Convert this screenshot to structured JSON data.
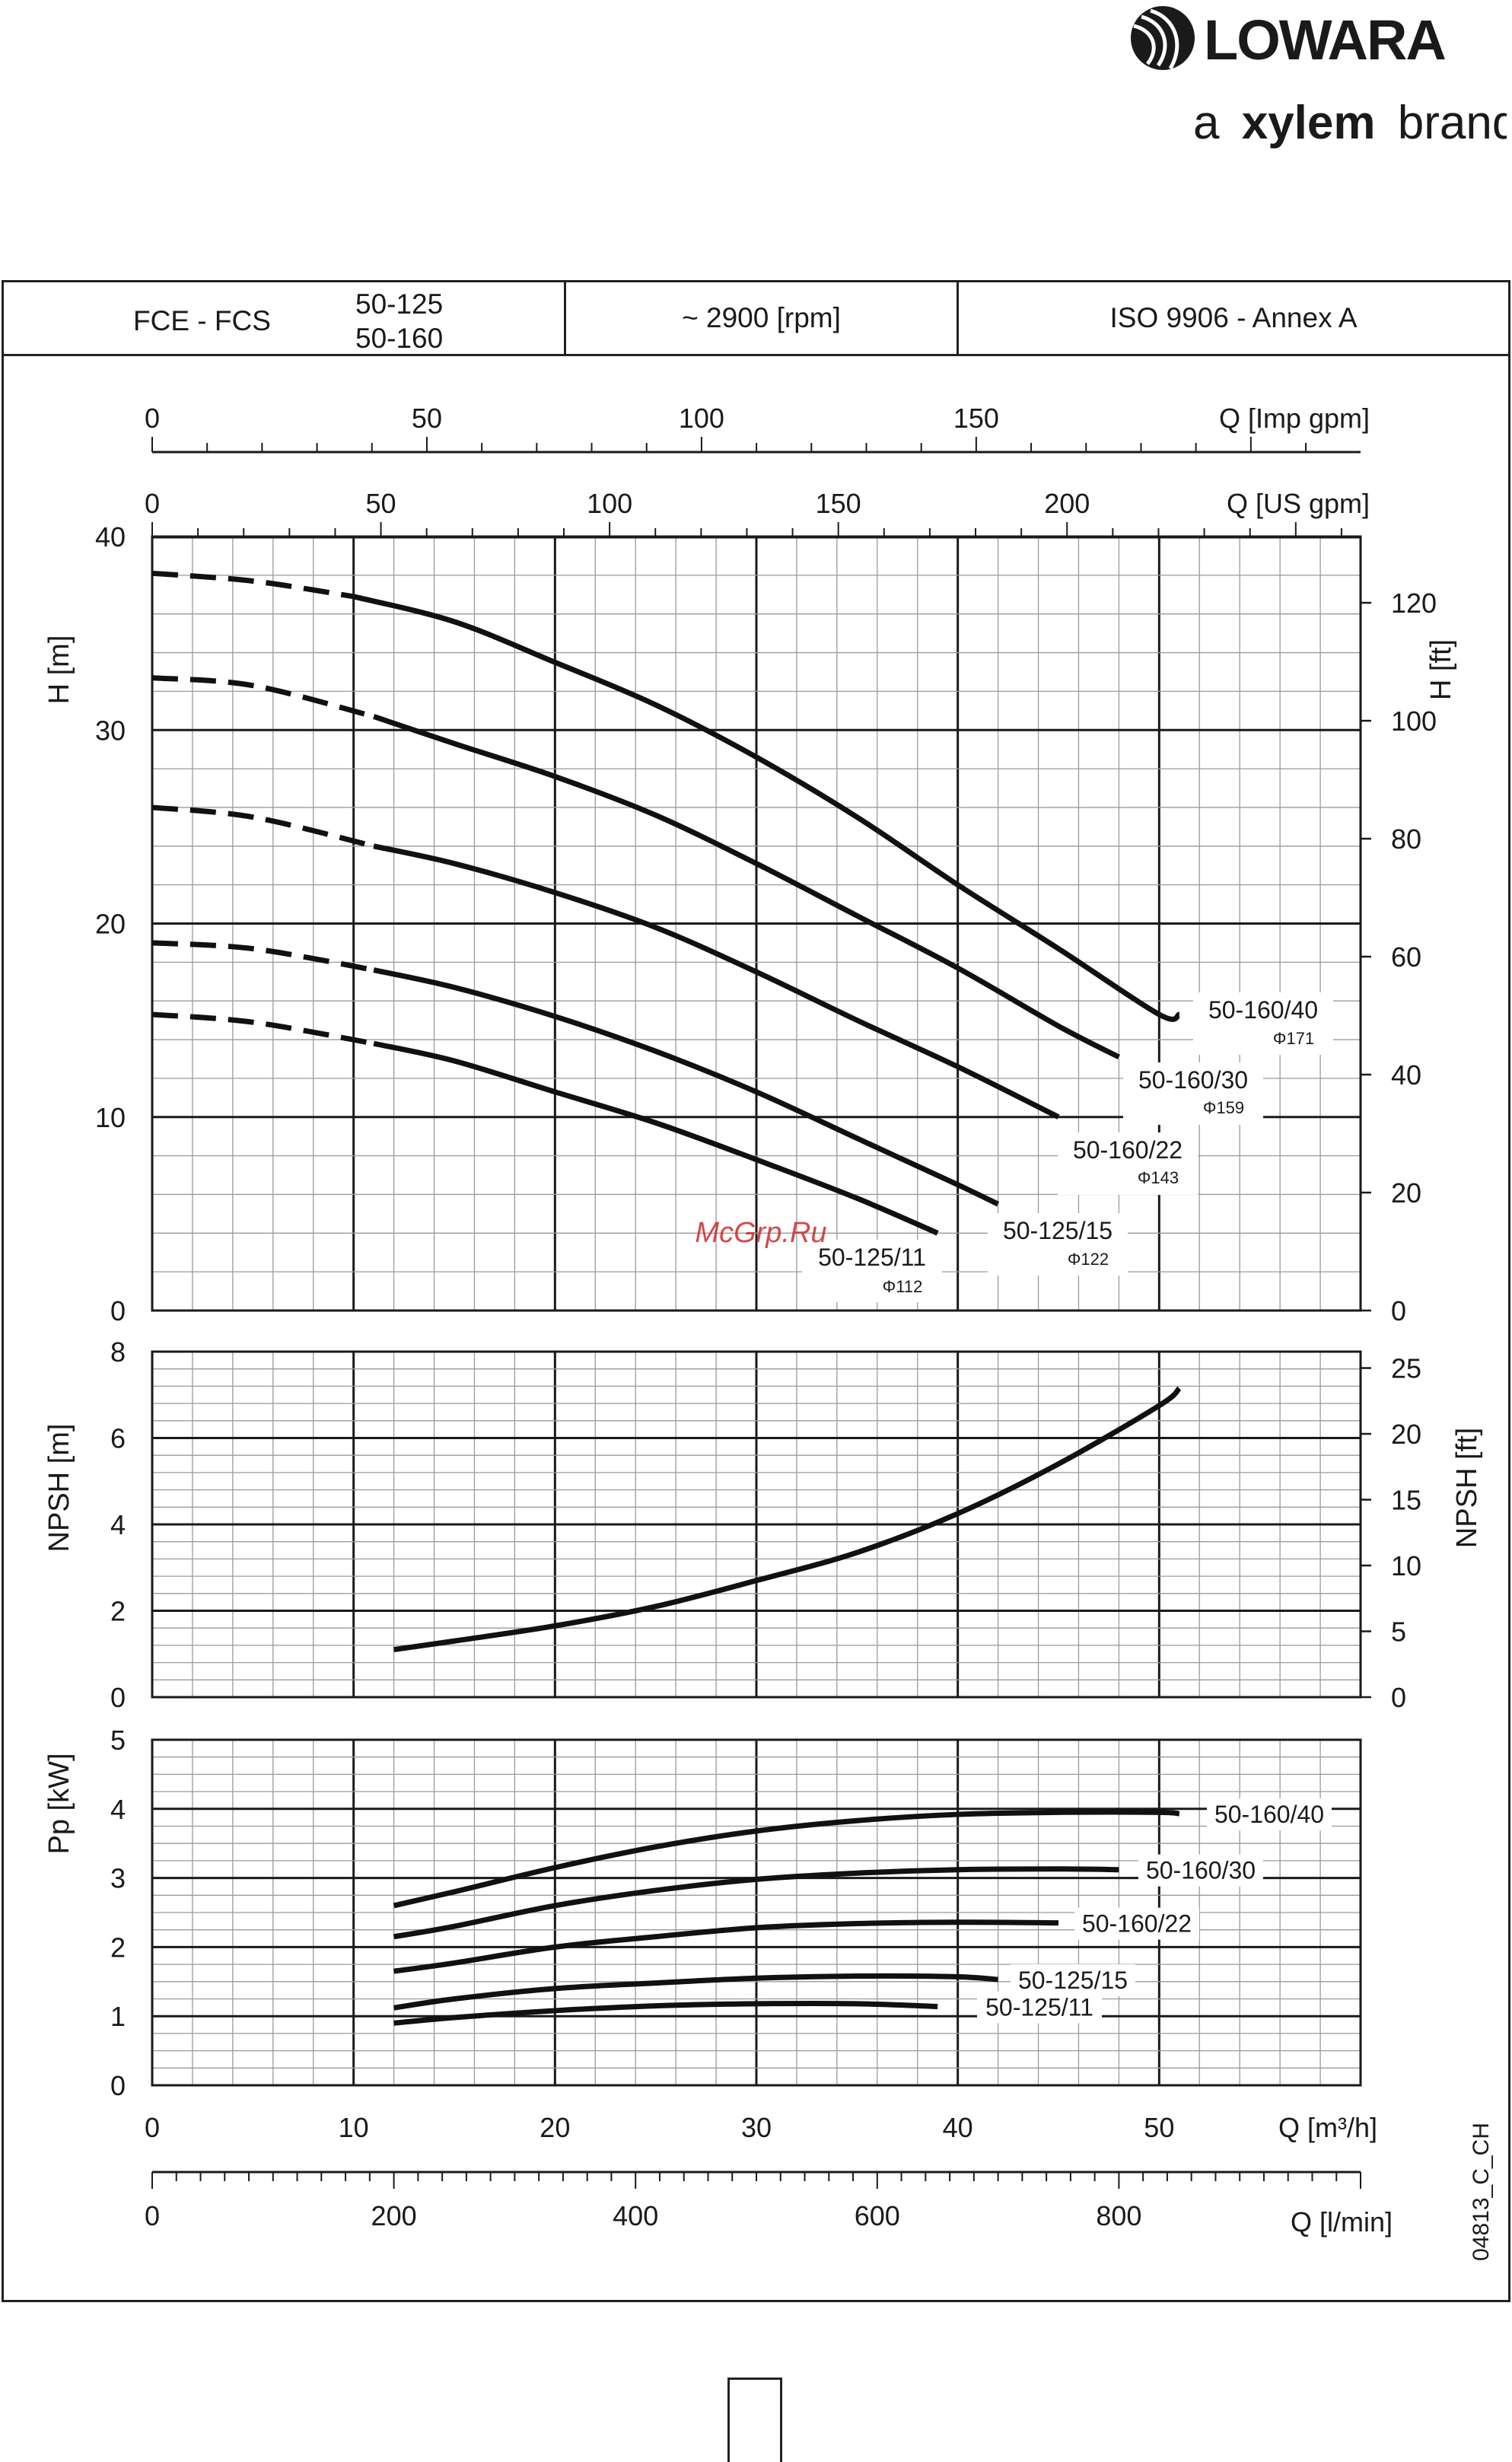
{
  "brand": {
    "name": "LOWARA",
    "tagline_prefix": "a",
    "tagline_brand": "xylem",
    "tagline_suffix": "brand"
  },
  "header": {
    "series": "FCE - FCS",
    "sizes": [
      "50-125",
      "50-160"
    ],
    "speed": "~ 2900 [rpm]",
    "standard": "ISO 9906 - Annex A"
  },
  "doc_code": "04813_C_CH",
  "watermark": "McGrp.Ru",
  "chart_data": {
    "type": "line",
    "x_axes": {
      "primary": {
        "label": "Q [m³/h]",
        "range": [
          0,
          60
        ],
        "ticks": [
          "0",
          "10",
          "20",
          "30",
          "40",
          "50"
        ],
        "tick_values": [
          0,
          10,
          20,
          30,
          40,
          50
        ]
      },
      "lpm": {
        "label": "Q [l/min]",
        "range": [
          0,
          1000
        ],
        "ticks": [
          "0",
          "200",
          "400",
          "600",
          "800"
        ],
        "tick_values": [
          0,
          200,
          400,
          600,
          800
        ]
      },
      "us_gpm": {
        "label": "Q [US gpm]",
        "range": [
          0,
          264.17
        ],
        "ticks": [
          "0",
          "50",
          "100",
          "150",
          "200"
        ],
        "tick_values": [
          0,
          50,
          100,
          150,
          200
        ]
      },
      "imp_gpm": {
        "label": "Q [Imp gpm]",
        "range": [
          0,
          220
        ],
        "ticks": [
          "0",
          "50",
          "100",
          "150"
        ],
        "tick_values": [
          0,
          50,
          100,
          150
        ]
      }
    },
    "head": {
      "ylabel": "H [m]",
      "ylim": [
        0,
        40
      ],
      "yticks": [
        "0",
        "10",
        "20",
        "30",
        "40"
      ],
      "ylabel_right": "H [ft]",
      "yticks_right": [
        "0",
        "20",
        "40",
        "60",
        "80",
        "100",
        "120"
      ],
      "series": [
        {
          "name": "50-160/40",
          "diameter": "Φ171",
          "dashed_until": 10,
          "points": [
            [
              0,
              38.1
            ],
            [
              5,
              37.7
            ],
            [
              10,
              36.9
            ],
            [
              15,
              35.6
            ],
            [
              20,
              33.5
            ],
            [
              25,
              31.3
            ],
            [
              30,
              28.6
            ],
            [
              35,
              25.5
            ],
            [
              40,
              22.0
            ],
            [
              45,
              18.7
            ],
            [
              50,
              15.3
            ],
            [
              51,
              15.3
            ]
          ]
        },
        {
          "name": "50-160/30",
          "diameter": "Φ159",
          "dashed_until": 11,
          "points": [
            [
              0,
              32.7
            ],
            [
              5,
              32.3
            ],
            [
              11,
              30.7
            ],
            [
              15,
              29.3
            ],
            [
              20,
              27.6
            ],
            [
              25,
              25.6
            ],
            [
              30,
              23.1
            ],
            [
              35,
              20.4
            ],
            [
              40,
              17.7
            ],
            [
              45,
              14.7
            ],
            [
              48,
              13.1
            ]
          ]
        },
        {
          "name": "50-160/22",
          "diameter": "Φ143",
          "dashed_until": 11,
          "points": [
            [
              0,
              26.0
            ],
            [
              5,
              25.5
            ],
            [
              11,
              24.0
            ],
            [
              15,
              23.1
            ],
            [
              20,
              21.6
            ],
            [
              25,
              19.8
            ],
            [
              30,
              17.5
            ],
            [
              35,
              15.0
            ],
            [
              40,
              12.6
            ],
            [
              45,
              10.0
            ]
          ]
        },
        {
          "name": "50-125/15",
          "diameter": "Φ122",
          "dashed_until": 11,
          "points": [
            [
              0,
              19.0
            ],
            [
              5,
              18.7
            ],
            [
              11,
              17.6
            ],
            [
              15,
              16.7
            ],
            [
              20,
              15.2
            ],
            [
              25,
              13.4
            ],
            [
              30,
              11.3
            ],
            [
              35,
              8.9
            ],
            [
              40,
              6.5
            ],
            [
              42,
              5.5
            ]
          ]
        },
        {
          "name": "50-125/11",
          "diameter": "Φ112",
          "dashed_until": 11,
          "points": [
            [
              0,
              15.3
            ],
            [
              5,
              14.9
            ],
            [
              11,
              13.8
            ],
            [
              15,
              12.9
            ],
            [
              20,
              11.3
            ],
            [
              25,
              9.7
            ],
            [
              30,
              7.8
            ],
            [
              35,
              5.8
            ],
            [
              39,
              4.0
            ]
          ]
        }
      ]
    },
    "npsh": {
      "ylabel": "NPSH [m]",
      "ylim": [
        0,
        8
      ],
      "yticks": [
        "0",
        "2",
        "4",
        "6",
        "8"
      ],
      "ylabel_right": "NPSH [ft]",
      "yticks_right": [
        "0",
        "5",
        "10",
        "15",
        "20",
        "25"
      ],
      "series": [
        {
          "name": "",
          "points": [
            [
              12,
              1.1
            ],
            [
              15,
              1.3
            ],
            [
              20,
              1.65
            ],
            [
              25,
              2.1
            ],
            [
              30,
              2.7
            ],
            [
              35,
              3.35
            ],
            [
              40,
              4.25
            ],
            [
              45,
              5.4
            ],
            [
              50,
              6.75
            ],
            [
              51,
              7.15
            ]
          ]
        }
      ]
    },
    "power": {
      "ylabel": "Pp [kW]",
      "ylim": [
        0,
        5
      ],
      "yticks": [
        "0",
        "1",
        "2",
        "3",
        "4",
        "5"
      ],
      "series": [
        {
          "name": "50-160/40",
          "points": [
            [
              12,
              2.6
            ],
            [
              15,
              2.8
            ],
            [
              20,
              3.15
            ],
            [
              25,
              3.45
            ],
            [
              30,
              3.68
            ],
            [
              35,
              3.83
            ],
            [
              40,
              3.92
            ],
            [
              45,
              3.95
            ],
            [
              50,
              3.95
            ],
            [
              51,
              3.93
            ]
          ]
        },
        {
          "name": "50-160/30",
          "points": [
            [
              12,
              2.15
            ],
            [
              15,
              2.3
            ],
            [
              20,
              2.6
            ],
            [
              25,
              2.82
            ],
            [
              30,
              2.98
            ],
            [
              35,
              3.07
            ],
            [
              40,
              3.12
            ],
            [
              45,
              3.13
            ],
            [
              48,
              3.12
            ]
          ]
        },
        {
          "name": "50-160/22",
          "points": [
            [
              12,
              1.65
            ],
            [
              15,
              1.77
            ],
            [
              20,
              2.0
            ],
            [
              25,
              2.15
            ],
            [
              30,
              2.28
            ],
            [
              35,
              2.34
            ],
            [
              40,
              2.36
            ],
            [
              45,
              2.35
            ]
          ]
        },
        {
          "name": "50-125/15",
          "points": [
            [
              12,
              1.12
            ],
            [
              15,
              1.25
            ],
            [
              20,
              1.4
            ],
            [
              25,
              1.48
            ],
            [
              30,
              1.55
            ],
            [
              35,
              1.58
            ],
            [
              40,
              1.57
            ],
            [
              42,
              1.53
            ]
          ]
        },
        {
          "name": "50-125/11",
          "points": [
            [
              12,
              0.9
            ],
            [
              15,
              0.98
            ],
            [
              20,
              1.08
            ],
            [
              25,
              1.15
            ],
            [
              30,
              1.18
            ],
            [
              35,
              1.18
            ],
            [
              39,
              1.14
            ]
          ]
        }
      ]
    }
  }
}
